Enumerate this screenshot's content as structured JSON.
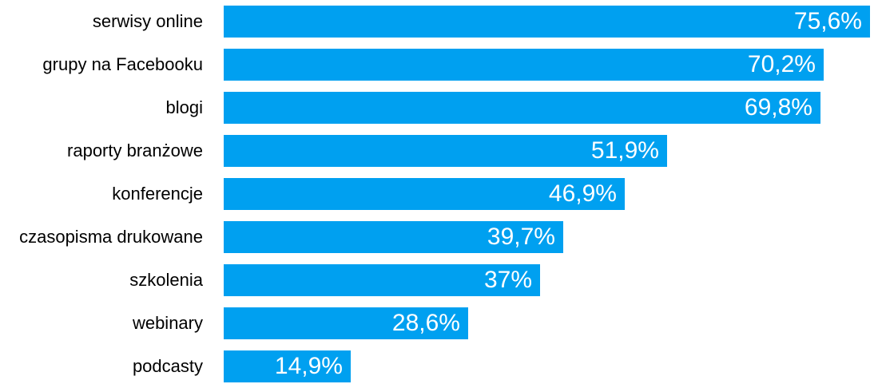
{
  "chart_data": {
    "type": "bar",
    "orientation": "horizontal",
    "title": "",
    "xlabel": "",
    "ylabel": "",
    "grid": false,
    "legend": false,
    "xlim": [
      0,
      76.5
    ],
    "categories": [
      "serwisy online",
      "grupy na Facebooku",
      "blogi",
      "raporty branżowe",
      "konferencje",
      "czasopisma drukowane",
      "szkolenia",
      "webinary",
      "podcasty"
    ],
    "values": [
      75.6,
      70.2,
      69.8,
      51.9,
      46.9,
      39.7,
      37,
      28.6,
      14.9
    ],
    "value_labels": [
      "75,6%",
      "70,2%",
      "69,8%",
      "51,9%",
      "46,9%",
      "39,7%",
      "37%",
      "28,6%",
      "14,9%"
    ],
    "colors": {
      "bar": "#00A0F0",
      "value_text": "#FFFFFF",
      "category_text": "#000000",
      "background": "#FFFFFF"
    }
  }
}
